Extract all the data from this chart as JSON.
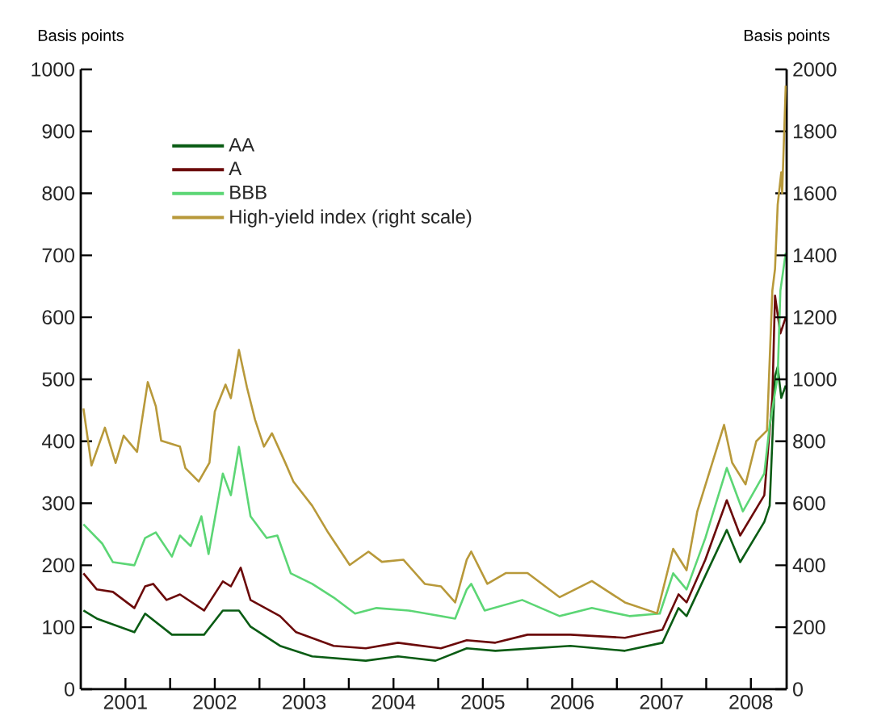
{
  "chart_data": {
    "type": "line",
    "ylabel": "Basis points",
    "y2label": "Basis points",
    "xlim": [
      2001,
      2008.9
    ],
    "xticks": [
      {
        "value": 2001.5,
        "label": "2001"
      },
      {
        "value": 2002,
        "label": null
      },
      {
        "value": 2002.5,
        "label": "2002"
      },
      {
        "value": 2003,
        "label": null
      },
      {
        "value": 2003.5,
        "label": "2003"
      },
      {
        "value": 2004,
        "label": null
      },
      {
        "value": 2004.5,
        "label": "2004"
      },
      {
        "value": 2005,
        "label": null
      },
      {
        "value": 2005.5,
        "label": "2005"
      },
      {
        "value": 2006,
        "label": null
      },
      {
        "value": 2006.5,
        "label": "2006"
      },
      {
        "value": 2007,
        "label": null
      },
      {
        "value": 2007.5,
        "label": "2007"
      },
      {
        "value": 2008,
        "label": null
      },
      {
        "value": 2008.5,
        "label": "2008"
      }
    ],
    "ylim": [
      0,
      1000
    ],
    "yticks": [
      0,
      100,
      200,
      300,
      400,
      500,
      600,
      700,
      800,
      900,
      1000
    ],
    "y2lim": [
      0,
      2000
    ],
    "y2ticks": [
      0,
      200,
      400,
      600,
      800,
      1000,
      1200,
      1400,
      1600,
      1800,
      2000
    ],
    "legend": "top left",
    "marker": "none",
    "line_style": "solid",
    "series": [
      {
        "name": "AA",
        "color": "#0a5c14",
        "x": [
          2001.03,
          2001.18,
          2001.6,
          2001.72,
          2002.02,
          2002.38,
          2002.59,
          2002.77,
          2002.9,
          2003.23,
          2003.59,
          2004.19,
          2004.55,
          2004.97,
          2005.32,
          2005.64,
          2006.48,
          2007.09,
          2007.51,
          2007.69,
          2007.78,
          2007.99,
          2008.23,
          2008.38,
          2008.65,
          2008.71,
          2008.77,
          2008.8,
          2008.84,
          2008.89
        ],
        "values": [
          127,
          114,
          92,
          122,
          88,
          88,
          127,
          127,
          101,
          70,
          53,
          46,
          53,
          46,
          66,
          62,
          70,
          62,
          75,
          131,
          118,
          183,
          257,
          205,
          270,
          296,
          505,
          520,
          470,
          490
        ]
      },
      {
        "name": "A",
        "color": "#6b0a0a",
        "x": [
          2001.03,
          2001.18,
          2001.36,
          2001.6,
          2001.72,
          2001.81,
          2001.96,
          2002.11,
          2002.38,
          2002.59,
          2002.68,
          2002.79,
          2002.9,
          2003.23,
          2003.41,
          2003.83,
          2004.19,
          2004.55,
          2005.03,
          2005.32,
          2005.64,
          2006.0,
          2006.48,
          2007.09,
          2007.51,
          2007.69,
          2007.78,
          2007.99,
          2008.23,
          2008.38,
          2008.65,
          2008.74,
          2008.77,
          2008.83,
          2008.89
        ],
        "values": [
          187,
          161,
          157,
          131,
          166,
          170,
          144,
          153,
          127,
          174,
          166,
          196,
          144,
          118,
          92,
          70,
          66,
          75,
          66,
          79,
          75,
          88,
          88,
          83,
          96,
          153,
          140,
          209,
          305,
          248,
          313,
          470,
          635,
          574,
          600
        ]
      },
      {
        "name": "BBB",
        "color": "#5cd675",
        "x": [
          2001.03,
          2001.24,
          2001.36,
          2001.6,
          2001.72,
          2001.84,
          2002.02,
          2002.11,
          2002.23,
          2002.35,
          2002.43,
          2002.59,
          2002.68,
          2002.77,
          2002.9,
          2003.08,
          2003.2,
          2003.35,
          2003.59,
          2003.83,
          2004.07,
          2004.31,
          2004.67,
          2005.19,
          2005.32,
          2005.37,
          2005.52,
          2005.94,
          2006.36,
          2006.72,
          2007.14,
          2007.48,
          2007.63,
          2007.78,
          2007.99,
          2008.23,
          2008.41,
          2008.65,
          2008.71,
          2008.8,
          2008.83,
          2008.89
        ],
        "values": [
          266,
          235,
          205,
          200,
          244,
          253,
          214,
          248,
          231,
          279,
          218,
          348,
          313,
          391,
          279,
          244,
          248,
          187,
          170,
          148,
          122,
          131,
          127,
          114,
          161,
          170,
          127,
          144,
          118,
          131,
          118,
          122,
          187,
          161,
          244,
          357,
          287,
          348,
          426,
          505,
          643,
          704
        ]
      },
      {
        "name": "High-yield index (right scale)",
        "color": "#b8993a",
        "axis": "y2",
        "x": [
          2001.03,
          2001.12,
          2001.27,
          2001.39,
          2001.48,
          2001.63,
          2001.75,
          2001.84,
          2001.9,
          2002.11,
          2002.17,
          2002.32,
          2002.44,
          2002.5,
          2002.62,
          2002.68,
          2002.77,
          2002.86,
          2002.95,
          2003.05,
          2003.14,
          2003.29,
          2003.38,
          2003.59,
          2003.77,
          2004.01,
          2004.22,
          2004.37,
          2004.61,
          2004.85,
          2005.03,
          2005.19,
          2005.32,
          2005.37,
          2005.55,
          2005.76,
          2006.0,
          2006.36,
          2006.72,
          2007.09,
          2007.45,
          2007.63,
          2007.78,
          2007.9,
          2008.05,
          2008.2,
          2008.29,
          2008.44,
          2008.56,
          2008.68,
          2008.74,
          2008.77,
          2008.8,
          2008.84,
          2008.85,
          2008.89
        ],
        "values": [
          906,
          722,
          844,
          730,
          818,
          766,
          991,
          913,
          802,
          783,
          714,
          670,
          731,
          896,
          983,
          939,
          1095,
          974,
          870,
          783,
          826,
          730,
          670,
          592,
          505,
          401,
          444,
          411,
          418,
          340,
          332,
          280,
          418,
          444,
          340,
          375,
          375,
          297,
          349,
          280,
          245,
          453,
          384,
          574,
          714,
          853,
          731,
          661,
          800,
          835,
          1286,
          1356,
          1564,
          1668,
          1600,
          1948
        ]
      }
    ]
  }
}
